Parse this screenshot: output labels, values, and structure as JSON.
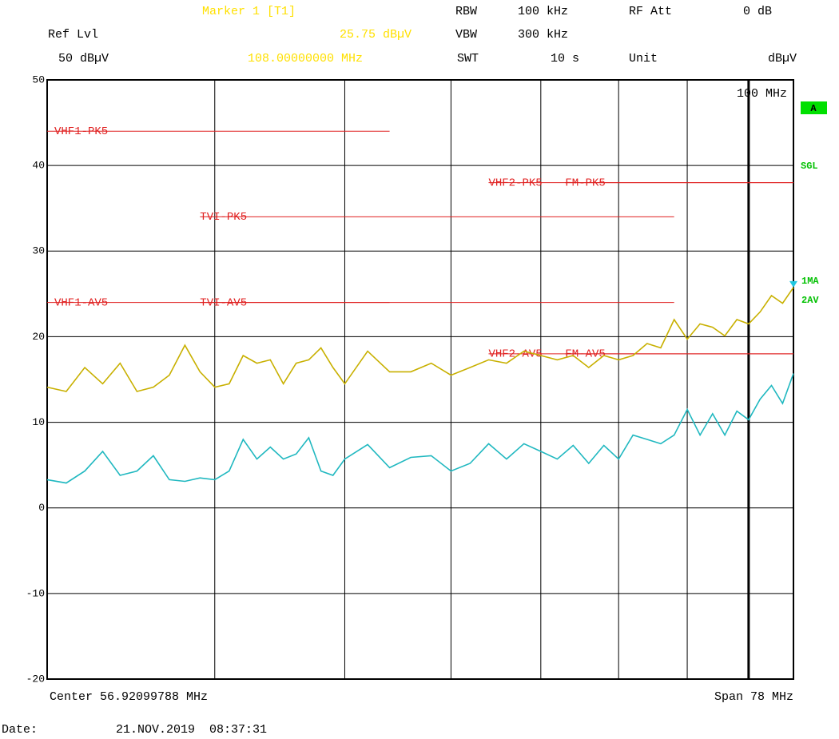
{
  "header": {
    "marker_title": "Marker 1 [T1]",
    "marker_value": "25.75 dBµV",
    "marker_freq": "108.00000000 MHz",
    "rbw_label": "RBW",
    "rbw": "100 kHz",
    "rf_att_label": "RF Att",
    "rf_att": "0 dB",
    "ref_lvl_label": "Ref Lvl",
    "ref_lvl": "50 dBµV",
    "vbw_label": "VBW",
    "vbw": "300 kHz",
    "swt_label": "SWT",
    "swt": "10 s",
    "unit_label": "Unit",
    "unit": "dBµV",
    "mode": "A",
    "sweep": "SGL"
  },
  "footer": {
    "center": "Center 56.92099788 MHz",
    "span": "Span 78 MHz",
    "date_label": "Date:",
    "date": "21.NOV.2019  08:37:31"
  },
  "chart_data": {
    "type": "line",
    "xscale": "log",
    "xlim": [
      30,
      108
    ],
    "xticks": [
      40,
      50,
      60,
      70,
      80,
      90,
      100
    ],
    "x_tick_labels_shown": false,
    "ylim": [
      -20,
      50
    ],
    "yticks": [
      -20,
      -10,
      0,
      10,
      20,
      30,
      40,
      50
    ],
    "grid": true,
    "x": [
      30,
      31,
      32,
      33,
      34,
      35,
      36,
      37,
      38,
      39,
      40,
      41,
      42,
      43,
      44,
      45,
      46,
      47,
      48,
      49,
      50,
      52,
      54,
      56,
      58,
      60,
      62,
      64,
      66,
      68,
      70,
      72,
      74,
      76,
      78,
      80,
      82,
      84,
      86,
      88,
      90,
      92,
      94,
      96,
      98,
      100,
      102,
      104,
      106,
      108
    ],
    "series": [
      {
        "name": "1MA",
        "color": "#c8b000",
        "values": [
          14.1,
          13.6,
          16.4,
          14.5,
          16.9,
          13.6,
          14.1,
          15.5,
          19.0,
          15.9,
          14.1,
          14.5,
          17.8,
          16.9,
          17.3,
          14.5,
          16.9,
          17.3,
          18.7,
          16.4,
          14.5,
          18.3,
          15.9,
          15.9,
          16.9,
          15.5,
          16.4,
          17.3,
          16.9,
          18.3,
          17.8,
          17.3,
          17.8,
          16.4,
          17.8,
          17.3,
          17.8,
          19.2,
          18.7,
          22.0,
          19.7,
          21.5,
          21.1,
          20.1,
          22.0,
          21.5,
          22.9,
          24.8,
          23.9,
          25.75
        ]
      },
      {
        "name": "2AV",
        "color": "#20b8c0",
        "values": [
          3.3,
          2.9,
          4.3,
          6.6,
          3.8,
          4.3,
          6.1,
          3.3,
          3.1,
          3.5,
          3.3,
          4.3,
          8.0,
          5.7,
          7.1,
          5.7,
          6.3,
          8.2,
          4.3,
          3.8,
          5.7,
          7.4,
          4.7,
          5.9,
          6.1,
          4.3,
          5.2,
          7.5,
          5.7,
          7.5,
          6.6,
          5.7,
          7.3,
          5.2,
          7.3,
          5.7,
          8.5,
          8.0,
          7.5,
          8.5,
          11.5,
          8.5,
          11.0,
          8.5,
          11.3,
          10.3,
          12.7,
          14.3,
          12.2,
          15.7
        ]
      }
    ],
    "limit_color": "#e02020",
    "limit_lines": [
      {
        "label": "VHF1-PK5",
        "value": 44,
        "x": [
          30,
          54
        ]
      },
      {
        "label": "VHF1-AV5",
        "value": 24,
        "x": [
          30,
          54
        ]
      },
      {
        "label": "TVI-PK5",
        "value": 34,
        "x": [
          39,
          88
        ]
      },
      {
        "label": "TVI-AV5",
        "value": 24,
        "x": [
          39,
          88
        ]
      },
      {
        "label": "VHF2-PK5",
        "value": 38,
        "x": [
          64,
          108
        ]
      },
      {
        "label": "FM-PK5",
        "value": 38,
        "x": [
          73,
          108
        ]
      },
      {
        "label": "VHF2-AV5",
        "value": 18,
        "x": [
          64,
          108
        ]
      },
      {
        "label": "FM-AV5",
        "value": 18,
        "x": [
          73,
          108
        ]
      }
    ],
    "display_line": {
      "x": 100,
      "label": "100 MHz"
    },
    "marker": {
      "x": 108,
      "value": 25.75,
      "color": "#20c8e0"
    }
  }
}
